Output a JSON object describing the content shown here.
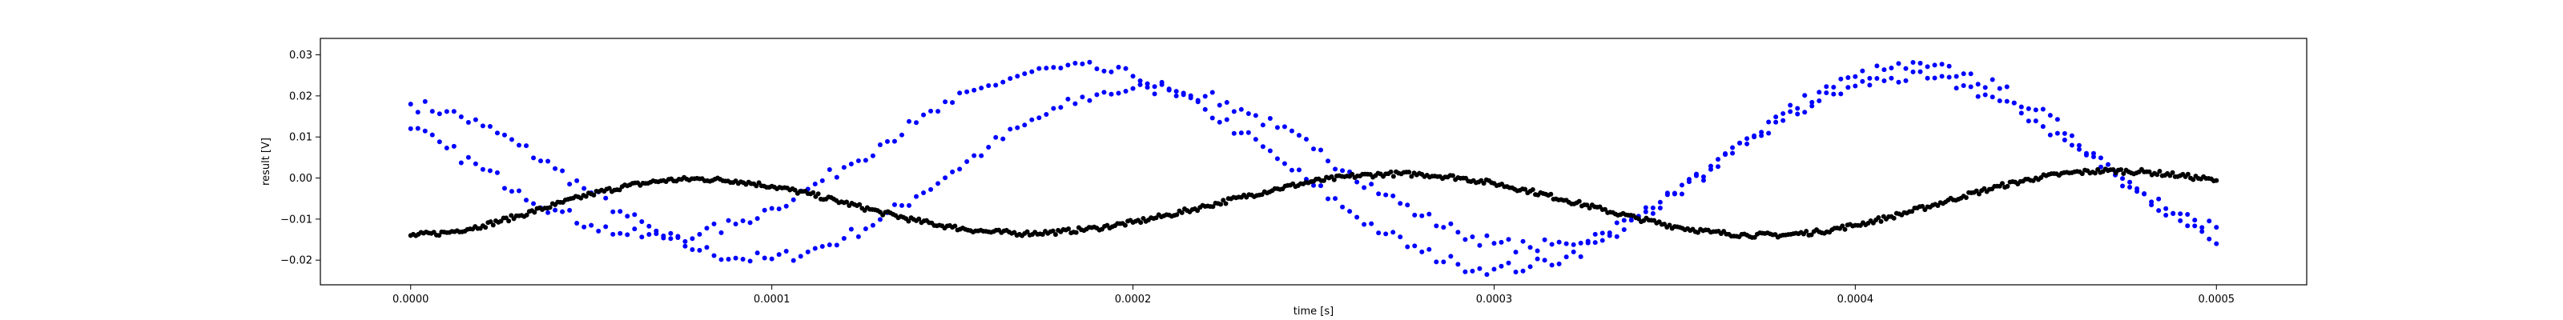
{
  "chart_data": {
    "type": "scatter",
    "title": "",
    "xlabel": "time [s]",
    "ylabel": "result [V]",
    "xlim": [
      -2.5e-05,
      0.000525
    ],
    "ylim": [
      -0.026,
      0.034
    ],
    "x_ticks": [
      0.0,
      0.0001,
      0.0002,
      0.0003,
      0.0004,
      0.0005
    ],
    "x_tick_labels": [
      "0.0000",
      "0.0001",
      "0.0002",
      "0.0003",
      "0.0004",
      "0.0005"
    ],
    "y_ticks": [
      -0.02,
      -0.01,
      0.0,
      0.01,
      0.02,
      0.03
    ],
    "y_tick_labels": [
      "−0.02",
      "−0.01",
      "0.00",
      "0.01",
      "0.02",
      "0.03"
    ],
    "grid": false,
    "legend": "none",
    "colors": {
      "series_a": "#0000ff",
      "series_b": "#0000ff",
      "series_c": "#000000"
    },
    "series": [
      {
        "color": "#0000ff",
        "x": [
          0.0,
          1e-05,
          2e-05,
          3e-05,
          4e-05,
          5e-05,
          6e-05,
          7e-05,
          8e-05,
          9e-05,
          0.0001,
          0.00011,
          0.00012,
          0.00013,
          0.00014,
          0.00015,
          0.00016,
          0.00017,
          0.00018,
          0.00019,
          0.0002,
          0.00021,
          0.00022,
          0.00023,
          0.00024,
          0.00025,
          0.00026,
          0.00027,
          0.00028,
          0.00029,
          0.0003,
          0.00031,
          0.00032,
          0.00033,
          0.00034,
          0.00035,
          0.00036,
          0.00037,
          0.00038,
          0.00039,
          0.0004,
          0.00041,
          0.00042,
          0.00043,
          0.00044,
          0.00045,
          0.00046,
          0.00047,
          0.00048,
          0.00049,
          0.0005
        ],
        "y": [
          0.018,
          0.0162,
          0.0127,
          0.008,
          0.0023,
          -0.0036,
          -0.0093,
          -0.0141,
          -0.0176,
          -0.0195,
          -0.0197,
          -0.018,
          -0.0147,
          -0.0101,
          -0.0045,
          0.0015,
          0.0075,
          0.0129,
          0.0172,
          0.0203,
          0.0218,
          0.0217,
          0.0199,
          0.0167,
          0.0123,
          0.0071,
          0.0015,
          -0.0041,
          -0.0092,
          -0.0132,
          -0.0159,
          -0.0169,
          -0.016,
          -0.0134,
          -0.0093,
          -0.0039,
          0.0021,
          0.0083,
          0.014,
          0.0188,
          0.0224,
          0.0243,
          0.0243,
          0.0225,
          0.0188,
          0.0139,
          0.008,
          0.0019,
          -0.0039,
          -0.0087,
          -0.012
        ]
      },
      {
        "color": "#0000ff",
        "x": [
          0.0,
          1e-05,
          2e-05,
          3e-05,
          4e-05,
          5e-05,
          6e-05,
          7e-05,
          8e-05,
          9e-05,
          0.0001,
          0.00011,
          0.00012,
          0.00013,
          0.00014,
          0.00015,
          0.00016,
          0.00017,
          0.00018,
          0.00019,
          0.0002,
          0.00021,
          0.00022,
          0.00023,
          0.00024,
          0.00025,
          0.00026,
          0.00027,
          0.00028,
          0.00029,
          0.0003,
          0.00031,
          0.00032,
          0.00033,
          0.00034,
          0.00035,
          0.00036,
          0.00037,
          0.00038,
          0.00039,
          0.0004,
          0.00041,
          0.00042,
          0.00043,
          0.00044,
          0.00045,
          0.00046,
          0.00047,
          0.00048,
          0.00049,
          0.0005
        ],
        "y": [
          0.012,
          0.0073,
          0.0021,
          -0.0031,
          -0.0078,
          -0.0115,
          -0.0138,
          -0.0146,
          -0.0137,
          -0.0112,
          -0.0074,
          -0.0027,
          0.0026,
          0.0081,
          0.0135,
          0.0184,
          0.0225,
          0.0254,
          0.0268,
          0.0266,
          0.0248,
          0.0214,
          0.0167,
          0.011,
          0.0047,
          -0.0018,
          -0.0081,
          -0.0136,
          -0.018,
          -0.021,
          -0.0222,
          -0.0216,
          -0.0192,
          -0.0152,
          -0.0099,
          -0.0037,
          0.0029,
          0.0096,
          0.0157,
          0.0209,
          0.0247,
          0.0268,
          0.0271,
          0.0254,
          0.0218,
          0.0166,
          0.0103,
          0.0033,
          -0.0038,
          -0.0104,
          -0.016
        ]
      },
      {
        "color": "#000000",
        "x": [
          0.0,
          1e-05,
          2e-05,
          3e-05,
          4e-05,
          5e-05,
          6e-05,
          7e-05,
          8e-05,
          9e-05,
          0.0001,
          0.00011,
          0.00012,
          0.00013,
          0.00014,
          0.00015,
          0.00016,
          0.00017,
          0.00018,
          0.00019,
          0.0002,
          0.00021,
          0.00022,
          0.00023,
          0.00024,
          0.00025,
          0.00026,
          0.00027,
          0.00028,
          0.00029,
          0.0003,
          0.00031,
          0.00032,
          0.00033,
          0.00034,
          0.00035,
          0.00036,
          0.00037,
          0.00038,
          0.00039,
          0.0004,
          0.00041,
          0.00042,
          0.00043,
          0.00044,
          0.00045,
          0.00046,
          0.00047,
          0.00048,
          0.00049,
          0.0005
        ],
        "y": [
          -0.014,
          -0.0133,
          -0.0116,
          -0.0092,
          -0.0065,
          -0.0039,
          -0.0019,
          -0.0006,
          -0.0002,
          -0.0007,
          -0.002,
          -0.0038,
          -0.006,
          -0.0083,
          -0.0104,
          -0.012,
          -0.0131,
          -0.0135,
          -0.0131,
          -0.0122,
          -0.0108,
          -0.009,
          -0.0069,
          -0.0047,
          -0.0026,
          -0.0008,
          0.0004,
          0.001,
          0.0009,
          0.0001,
          -0.0013,
          -0.0032,
          -0.0054,
          -0.0077,
          -0.0099,
          -0.0118,
          -0.0132,
          -0.0139,
          -0.0139,
          -0.0131,
          -0.0115,
          -0.0094,
          -0.007,
          -0.0044,
          -0.002,
          0.0,
          0.0013,
          0.0018,
          0.0015,
          0.0006,
          -0.0006
        ]
      }
    ]
  }
}
